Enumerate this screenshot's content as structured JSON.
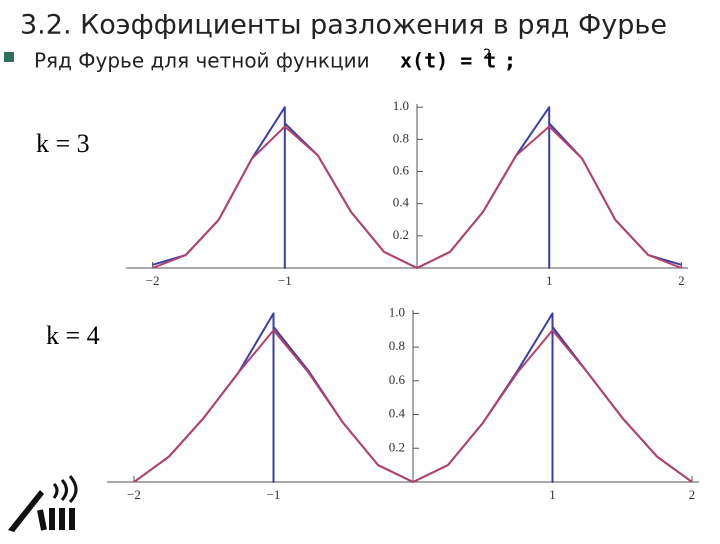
{
  "title": "3.2. Коэффициенты разложения в ряд Фурье",
  "bullet": {
    "text": "Ряд Фурье для четной функции",
    "formula": "x(t) = t",
    "exponent": "2",
    "suffix": ";"
  },
  "chart_data": [
    {
      "type": "line",
      "annotation": "k = 3",
      "xlim": [
        -2.05,
        2.05
      ],
      "ylim": [
        0,
        1.02
      ],
      "xticks": [
        {
          "value": -2,
          "label": "−2"
        },
        {
          "value": -1,
          "label": "−1"
        },
        1,
        2
      ],
      "yticks": [
        0.2,
        0.4,
        0.6,
        0.8,
        {
          "value": 1,
          "label": "1.0"
        }
      ],
      "series": [
        {
          "name": "x(t)",
          "color": "#3b3fa8",
          "x": [
            -2,
            -1.75,
            -1.5,
            -1.25,
            -1,
            -1,
            -1,
            -0.75,
            -0.5,
            -0.25,
            0,
            0.25,
            0.5,
            0.75,
            1,
            1,
            1,
            1.25,
            1.5,
            1.75,
            2
          ],
          "values": [
            0.02,
            0.08,
            0.3,
            0.68,
            1.0,
            0,
            0.9,
            0.7,
            0.35,
            0.1,
            0.0,
            0.1,
            0.35,
            0.7,
            1.0,
            0,
            0.9,
            0.68,
            0.3,
            0.08,
            0.02
          ]
        },
        {
          "name": "k = 3",
          "color": "#b8406e",
          "x": [
            -2,
            -1.75,
            -1.5,
            -1.25,
            -1,
            -0.75,
            -0.5,
            -0.25,
            0,
            0.25,
            0.5,
            0.75,
            1,
            1.25,
            1.5,
            1.75,
            2
          ],
          "values": [
            0.0,
            0.08,
            0.3,
            0.68,
            0.88,
            0.7,
            0.35,
            0.1,
            0.0,
            0.1,
            0.35,
            0.7,
            0.88,
            0.68,
            0.3,
            0.08,
            0.0
          ]
        }
      ]
    },
    {
      "type": "line",
      "annotation": "k = 4",
      "xlim": [
        -2.05,
        2.05
      ],
      "ylim": [
        0,
        1.02
      ],
      "xticks": [
        {
          "value": -2,
          "label": "−2"
        },
        {
          "value": -1,
          "label": "−1"
        },
        1,
        2
      ],
      "yticks": [
        0.2,
        0.4,
        0.6,
        0.8,
        {
          "value": 1,
          "label": "1.0"
        }
      ],
      "series": [
        {
          "name": "x(t)",
          "color": "#3b3fa8",
          "x": [
            -2,
            -1.75,
            -1.5,
            -1.25,
            -1,
            -1,
            -1,
            -0.75,
            -0.5,
            -0.25,
            0,
            0.25,
            0.5,
            0.75,
            1,
            1,
            1,
            1.25,
            1.5,
            1.75,
            2
          ],
          "values": [
            0.0,
            0.15,
            0.38,
            0.65,
            1.0,
            0,
            0.92,
            0.66,
            0.35,
            0.1,
            0.0,
            0.1,
            0.35,
            0.66,
            1.0,
            0,
            0.92,
            0.65,
            0.38,
            0.15,
            0.0
          ]
        },
        {
          "name": "k = 4",
          "color": "#b8406e",
          "x": [
            -2,
            -1.75,
            -1.5,
            -1.25,
            -1,
            -0.75,
            -0.5,
            -0.25,
            0,
            0.25,
            0.5,
            0.75,
            1,
            1.25,
            1.5,
            1.75,
            2
          ],
          "values": [
            0.0,
            0.15,
            0.38,
            0.65,
            0.9,
            0.65,
            0.35,
            0.1,
            0.0,
            0.1,
            0.35,
            0.65,
            0.9,
            0.65,
            0.38,
            0.15,
            0.0
          ]
        }
      ]
    }
  ]
}
